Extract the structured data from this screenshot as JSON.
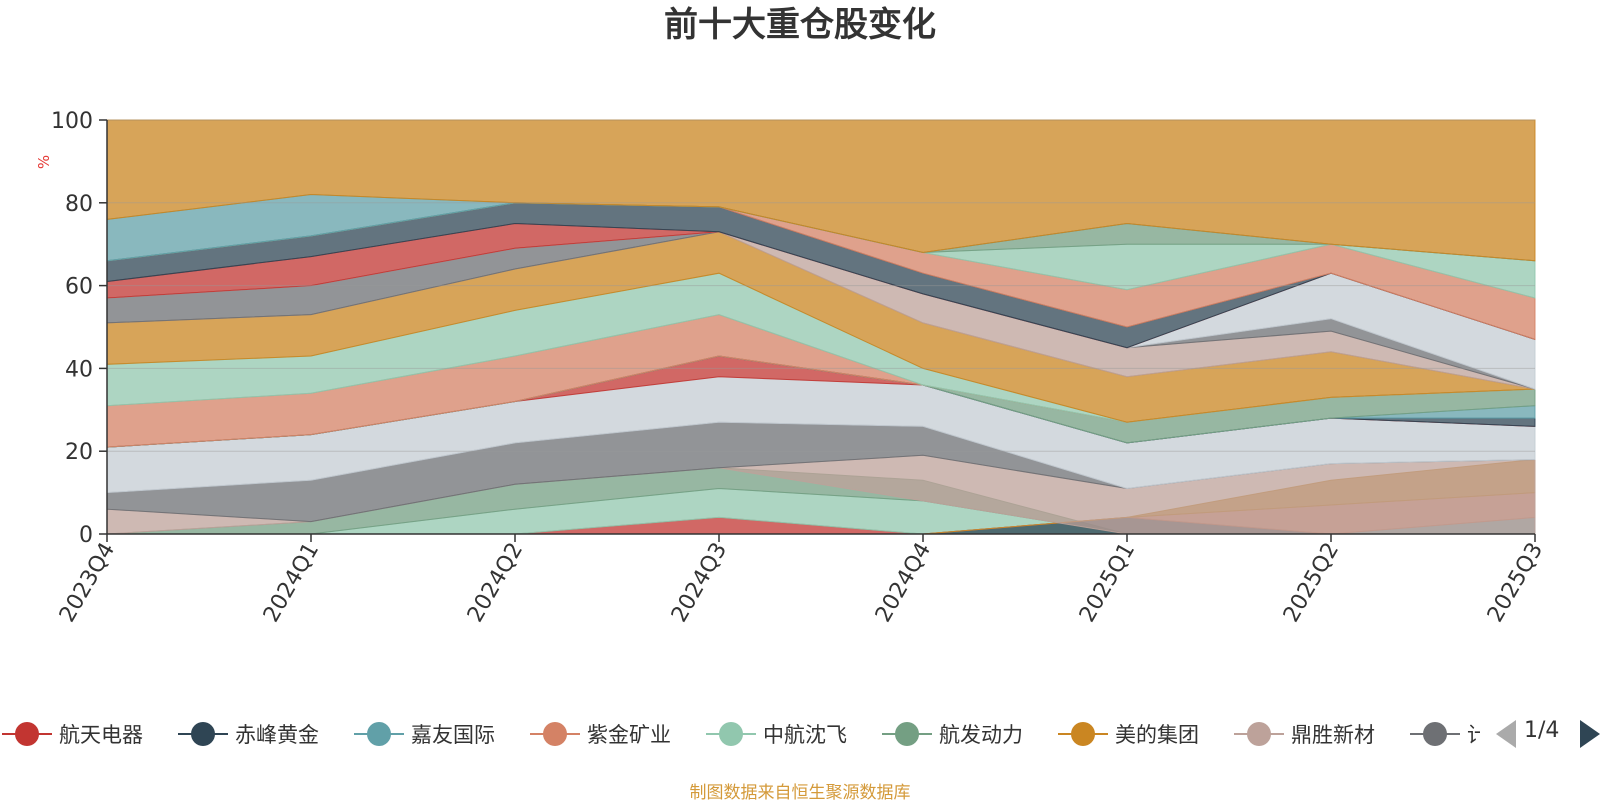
{
  "chart_data": {
    "type": "area",
    "title": "前十大重仓股变化",
    "ylabel": "%",
    "ylim": [
      0,
      100
    ],
    "yticks": [
      0,
      20,
      40,
      60,
      80,
      100
    ],
    "categories": [
      "2023Q4",
      "2024Q1",
      "2024Q2",
      "2024Q3",
      "2024Q4",
      "2025Q1",
      "2025Q2",
      "2025Q3"
    ],
    "bands": [
      {
        "color": "#c23531",
        "lower": [
          0,
          0,
          0,
          0,
          0,
          0,
          0,
          0
        ],
        "upper": [
          0,
          0,
          0,
          4,
          0,
          0,
          0,
          0
        ]
      },
      {
        "color": "#91c7ae",
        "lower": [
          0,
          0,
          0,
          4,
          0,
          0,
          0,
          0
        ],
        "upper": [
          0,
          0,
          6,
          11,
          8,
          0,
          0,
          0
        ]
      },
      {
        "color": "#749f83",
        "lower": [
          0,
          0,
          6,
          11,
          8,
          0,
          0,
          0
        ],
        "upper": [
          0,
          3,
          12,
          16,
          13,
          0,
          0,
          0
        ]
      },
      {
        "color": "#2f4554",
        "lower": [
          0,
          0,
          0,
          0,
          0,
          0,
          0,
          0
        ],
        "upper": [
          0,
          0,
          0,
          0,
          0,
          4,
          0,
          0
        ]
      },
      {
        "color": "#61a0a8",
        "lower": [
          0,
          0,
          0,
          0,
          0,
          0,
          0,
          0
        ],
        "upper": [
          0,
          0,
          0,
          0,
          0,
          0,
          0,
          4
        ]
      },
      {
        "color": "#d48265",
        "lower": [
          0,
          0,
          0,
          0,
          0,
          4,
          0,
          4
        ],
        "upper": [
          0,
          0,
          0,
          0,
          0,
          4,
          7,
          10
        ]
      },
      {
        "color": "#ca8622",
        "lower": [
          0,
          0,
          0,
          0,
          0,
          4,
          7,
          10
        ],
        "upper": [
          0,
          0,
          0,
          0,
          0,
          4,
          13,
          18
        ]
      },
      {
        "color": "#bda29a",
        "lower": [
          0,
          3,
          12,
          16,
          8,
          0,
          0,
          0
        ],
        "upper": [
          6,
          3,
          12,
          16,
          19,
          11,
          17,
          18
        ]
      },
      {
        "color": "#6e7074",
        "lower": [
          6,
          3,
          12,
          16,
          19,
          11,
          17,
          18
        ],
        "upper": [
          10,
          13,
          22,
          27,
          26,
          11,
          17,
          18
        ]
      },
      {
        "color": "#c4ccd3",
        "lower": [
          10,
          13,
          22,
          27,
          26,
          11,
          17,
          18
        ],
        "upper": [
          21,
          24,
          32,
          38,
          36,
          22,
          28,
          26
        ]
      },
      {
        "color": "#c23531",
        "lower": [
          21,
          24,
          32,
          38,
          36,
          22,
          28,
          26
        ],
        "upper": [
          21,
          24,
          32,
          43,
          36,
          22,
          28,
          26
        ]
      },
      {
        "color": "#2f4554",
        "lower": [
          21,
          24,
          32,
          43,
          36,
          22,
          28,
          26
        ],
        "upper": [
          21,
          24,
          32,
          43,
          36,
          22,
          28,
          28
        ]
      },
      {
        "color": "#61a0a8",
        "lower": [
          21,
          24,
          32,
          43,
          36,
          22,
          28,
          28
        ],
        "upper": [
          21,
          24,
          32,
          43,
          36,
          22,
          28,
          31
        ]
      },
      {
        "color": "#749f83",
        "lower": [
          21,
          24,
          32,
          43,
          36,
          22,
          28,
          31
        ],
        "upper": [
          21,
          24,
          32,
          43,
          36,
          27,
          33,
          35
        ]
      },
      {
        "color": "#d48265",
        "lower": [
          21,
          24,
          32,
          43,
          36,
          27,
          33,
          35
        ],
        "upper": [
          31,
          34,
          43,
          53,
          36,
          27,
          33,
          35
        ]
      },
      {
        "color": "#91c7ae",
        "lower": [
          31,
          34,
          43,
          53,
          36,
          27,
          33,
          35
        ],
        "upper": [
          41,
          43,
          54,
          63,
          40,
          27,
          33,
          35
        ]
      },
      {
        "color": "#ca8622",
        "lower": [
          41,
          43,
          54,
          63,
          40,
          27,
          33,
          35
        ],
        "upper": [
          51,
          53,
          64,
          73,
          51,
          38,
          44,
          35
        ]
      },
      {
        "color": "#bda29a",
        "lower": [
          51,
          53,
          64,
          73,
          51,
          38,
          44,
          35
        ],
        "upper": [
          51,
          53,
          64,
          73,
          58,
          45,
          49,
          35
        ]
      },
      {
        "color": "#6e7074",
        "lower": [
          51,
          53,
          64,
          73,
          58,
          45,
          49,
          35
        ],
        "upper": [
          57,
          60,
          69,
          73,
          58,
          45,
          52,
          35
        ]
      },
      {
        "color": "#c4ccd3",
        "lower": [
          57,
          60,
          69,
          73,
          58,
          45,
          52,
          35
        ],
        "upper": [
          57,
          60,
          69,
          73,
          58,
          45,
          63,
          47
        ]
      },
      {
        "color": "#c23531",
        "lower": [
          57,
          60,
          69,
          73,
          58,
          45,
          63,
          47
        ],
        "upper": [
          61,
          67,
          75,
          73,
          58,
          45,
          63,
          47
        ]
      },
      {
        "color": "#2f4554",
        "lower": [
          61,
          67,
          75,
          73,
          58,
          45,
          63,
          47
        ],
        "upper": [
          66,
          72,
          80,
          79,
          63,
          50,
          63,
          47
        ]
      },
      {
        "color": "#d48265",
        "lower": [
          66,
          72,
          80,
          79,
          63,
          50,
          63,
          47
        ],
        "upper": [
          66,
          72,
          80,
          79,
          68,
          59,
          70,
          57
        ]
      },
      {
        "color": "#91c7ae",
        "lower": [
          66,
          72,
          80,
          79,
          68,
          59,
          70,
          57
        ],
        "upper": [
          66,
          72,
          80,
          79,
          68,
          70,
          70,
          66
        ]
      },
      {
        "color": "#749f83",
        "lower": [
          66,
          72,
          80,
          79,
          68,
          70,
          70,
          66
        ],
        "upper": [
          66,
          72,
          80,
          79,
          68,
          75,
          70,
          66
        ]
      },
      {
        "color": "#61a0a8",
        "lower": [
          66,
          72,
          80,
          79,
          68,
          75,
          70,
          66
        ],
        "upper": [
          76,
          82,
          80,
          79,
          68,
          75,
          70,
          66
        ]
      },
      {
        "color": "#ca8622",
        "lower": [
          76,
          82,
          80,
          79,
          68,
          75,
          70,
          66
        ],
        "upper": [
          100,
          100,
          100,
          100,
          100,
          100,
          100,
          100
        ]
      }
    ]
  },
  "legend": {
    "items": [
      {
        "label": "航天电器",
        "color": "#c23531"
      },
      {
        "label": "赤峰黄金",
        "color": "#2f4554"
      },
      {
        "label": "嘉友国际",
        "color": "#61a0a8"
      },
      {
        "label": "紫金矿业",
        "color": "#d48265"
      },
      {
        "label": "中航沈飞",
        "color": "#91c7ae"
      },
      {
        "label": "航发动力",
        "color": "#749f83"
      },
      {
        "label": "美的集团",
        "color": "#ca8622"
      },
      {
        "label": "鼎胜新材",
        "color": "#bda29a"
      },
      {
        "label": "计",
        "color": "#6e7074"
      }
    ],
    "pager": "1/4"
  },
  "footer": {
    "source": "制图数据来自恒生聚源数据库"
  }
}
